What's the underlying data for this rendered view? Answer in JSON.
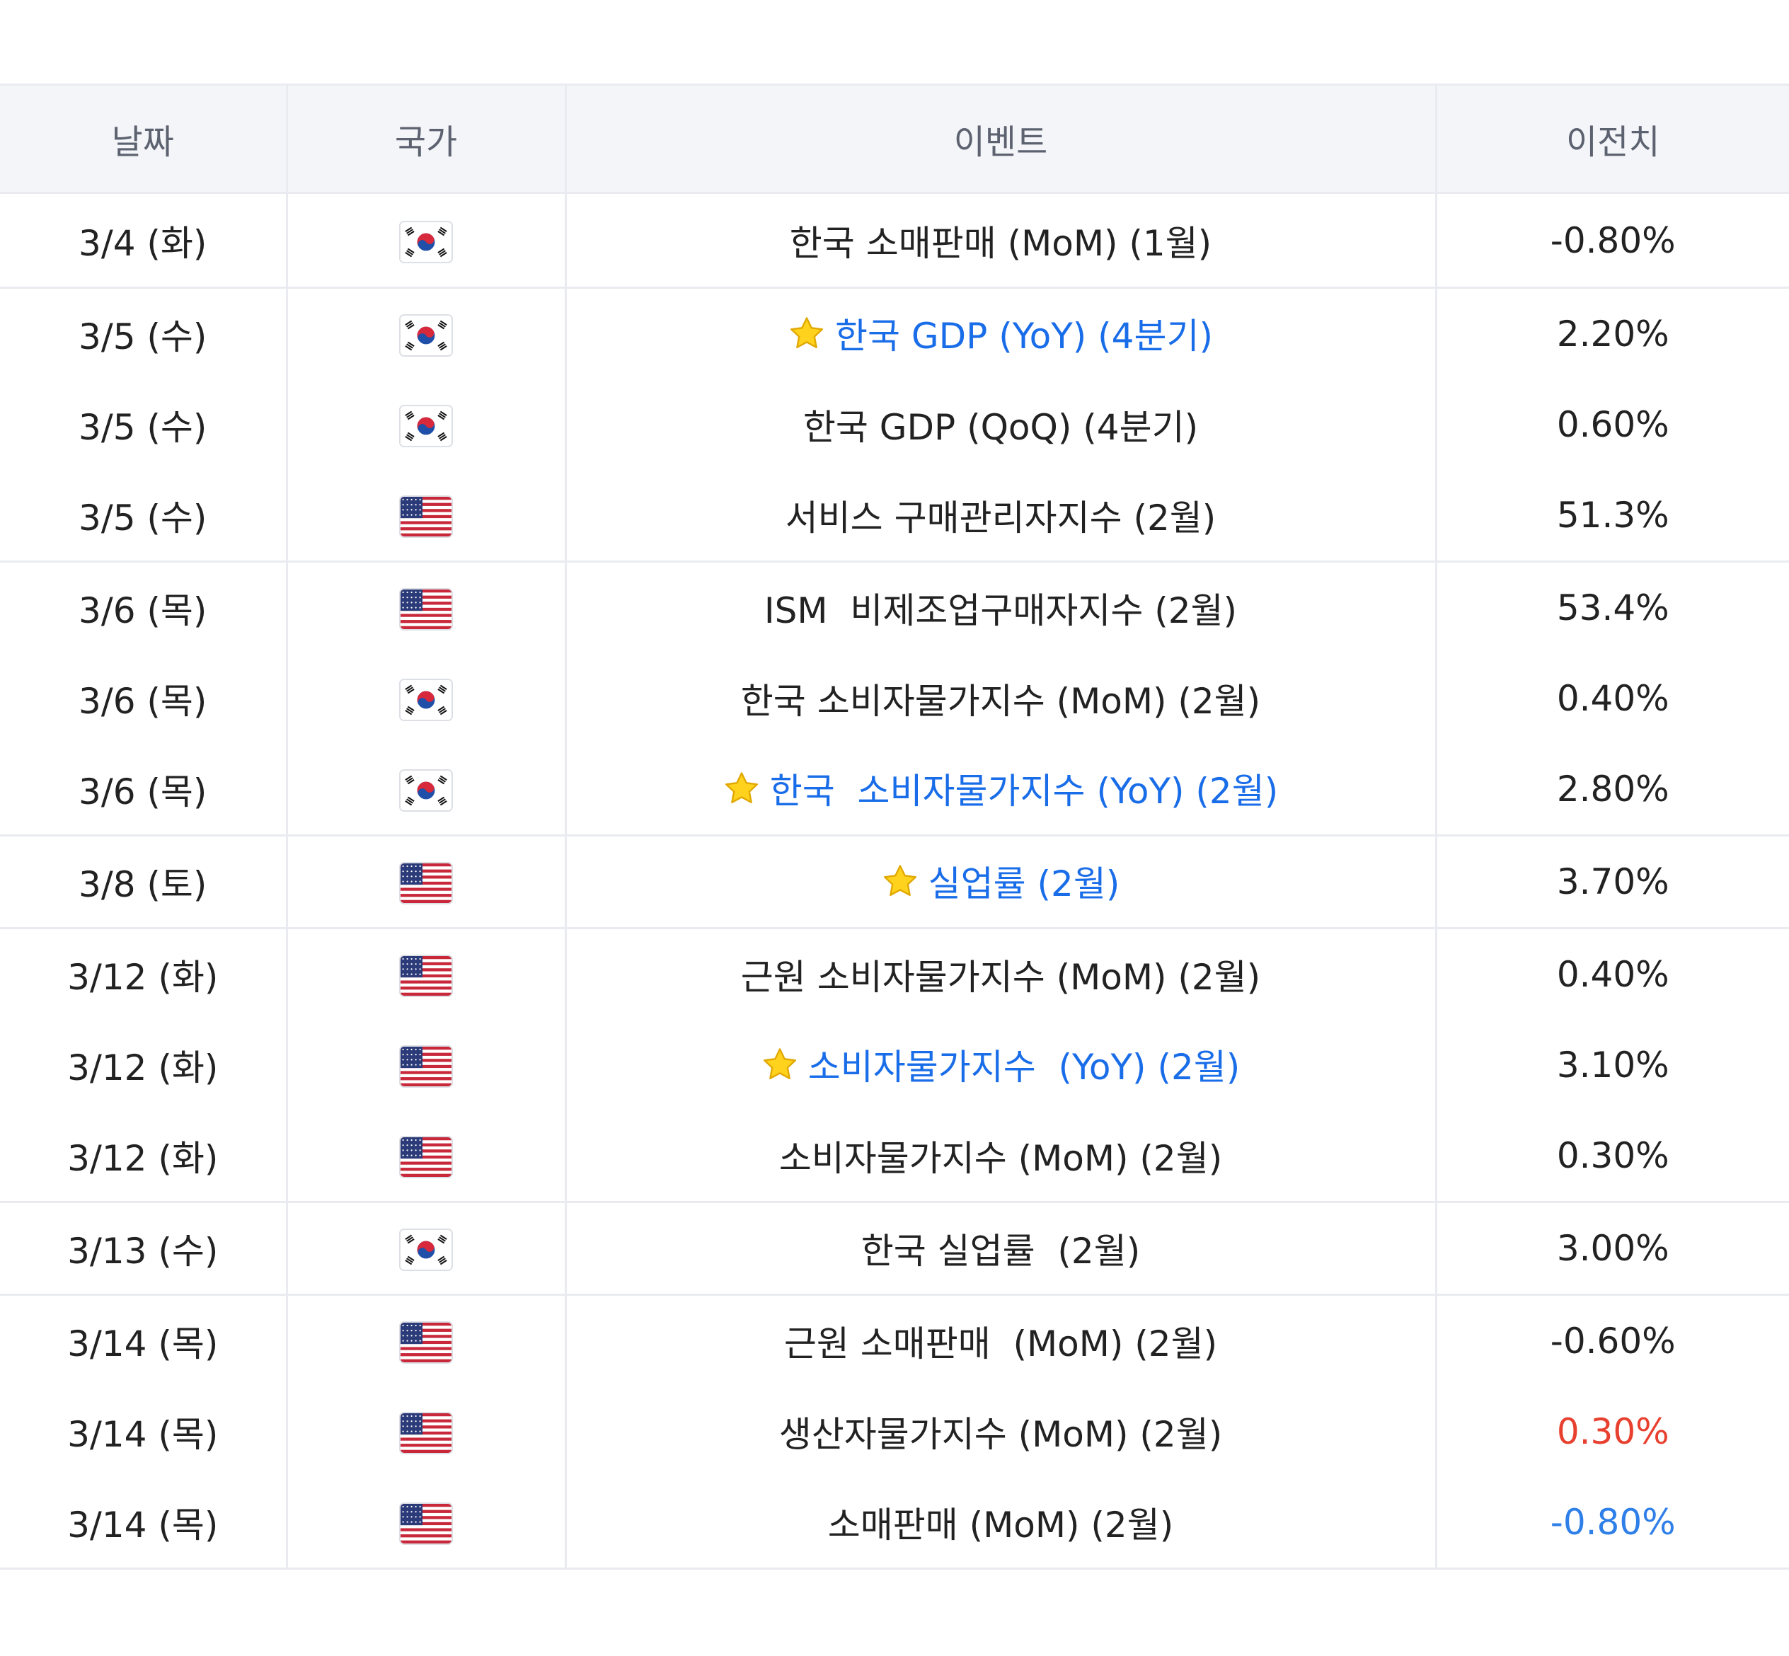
{
  "headers": {
    "date": "날짜",
    "country": "국가",
    "event": "이벤트",
    "previous": "이전치"
  },
  "colors": {
    "highlight_event": "#1a6de8",
    "previous_up": "#e8402f",
    "previous_down": "#2f7fe8",
    "header_bg": "#f4f5f8"
  },
  "rows": [
    {
      "date": "3/4 (화)",
      "country": "KR",
      "flag_icon": "south-korea-flag-icon",
      "event": "한국 소매판매 (MoM) (1월)",
      "starred": false,
      "previous": "-0.80%",
      "previous_color": "default"
    },
    {
      "date": "3/5 (수)",
      "country": "KR",
      "flag_icon": "south-korea-flag-icon",
      "event": "한국 GDP (YoY) (4분기)",
      "starred": true,
      "previous": "2.20%",
      "previous_color": "default"
    },
    {
      "date": "3/5 (수)",
      "country": "KR",
      "flag_icon": "south-korea-flag-icon",
      "event": "한국 GDP (QoQ) (4분기)",
      "starred": false,
      "previous": "0.60%",
      "previous_color": "default"
    },
    {
      "date": "3/5 (수)",
      "country": "US",
      "flag_icon": "united-states-flag-icon",
      "event": "서비스 구매관리자지수 (2월)",
      "starred": false,
      "previous": "51.3%",
      "previous_color": "default"
    },
    {
      "date": "3/6 (목)",
      "country": "US",
      "flag_icon": "united-states-flag-icon",
      "event": "ISM  비제조업구매자지수 (2월)",
      "starred": false,
      "previous": "53.4%",
      "previous_color": "default"
    },
    {
      "date": "3/6 (목)",
      "country": "KR",
      "flag_icon": "south-korea-flag-icon",
      "event": "한국 소비자물가지수 (MoM) (2월)",
      "starred": false,
      "previous": "0.40%",
      "previous_color": "default"
    },
    {
      "date": "3/6 (목)",
      "country": "KR",
      "flag_icon": "south-korea-flag-icon",
      "event": "한국  소비자물가지수 (YoY) (2월)",
      "starred": true,
      "previous": "2.80%",
      "previous_color": "default"
    },
    {
      "date": "3/8 (토)",
      "country": "US",
      "flag_icon": "united-states-flag-icon",
      "event": "실업률 (2월)",
      "starred": true,
      "previous": "3.70%",
      "previous_color": "default"
    },
    {
      "date": "3/12 (화)",
      "country": "US",
      "flag_icon": "united-states-flag-icon",
      "event": "근원 소비자물가지수 (MoM) (2월)",
      "starred": false,
      "previous": "0.40%",
      "previous_color": "default"
    },
    {
      "date": "3/12 (화)",
      "country": "US",
      "flag_icon": "united-states-flag-icon",
      "event": "소비자물가지수  (YoY) (2월)",
      "starred": true,
      "previous": "3.10%",
      "previous_color": "default"
    },
    {
      "date": "3/12 (화)",
      "country": "US",
      "flag_icon": "united-states-flag-icon",
      "event": "소비자물가지수 (MoM) (2월)",
      "starred": false,
      "previous": "0.30%",
      "previous_color": "default"
    },
    {
      "date": "3/13 (수)",
      "country": "KR",
      "flag_icon": "south-korea-flag-icon",
      "event": "한국 실업률  (2월)",
      "starred": false,
      "previous": "3.00%",
      "previous_color": "default"
    },
    {
      "date": "3/14 (목)",
      "country": "US",
      "flag_icon": "united-states-flag-icon",
      "event": "근원 소매판매  (MoM) (2월)",
      "starred": false,
      "previous": "-0.60%",
      "previous_color": "default"
    },
    {
      "date": "3/14 (목)",
      "country": "US",
      "flag_icon": "united-states-flag-icon",
      "event": "생산자물가지수 (MoM) (2월)",
      "starred": false,
      "previous": "0.30%",
      "previous_color": "red"
    },
    {
      "date": "3/14 (목)",
      "country": "US",
      "flag_icon": "united-states-flag-icon",
      "event": "소매판매 (MoM) (2월)",
      "starred": false,
      "previous": "-0.80%",
      "previous_color": "blue"
    }
  ]
}
